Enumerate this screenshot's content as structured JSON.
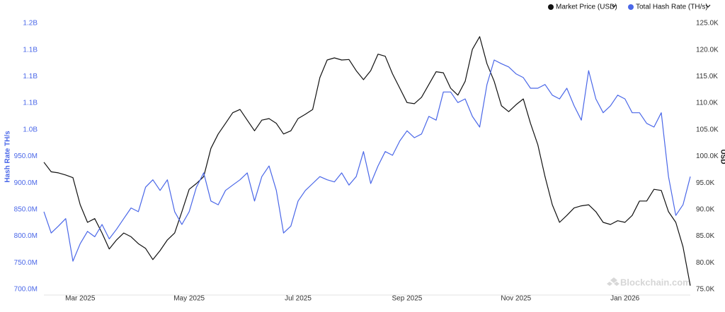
{
  "chart_data": {
    "type": "line",
    "y_label": "Hash Rate TH/s",
    "y2_label": "USD",
    "watermark": "Blockchain.com",
    "categories": [
      null,
      null,
      null,
      null,
      null,
      "Mar 2025",
      null,
      null,
      null,
      null,
      null,
      null,
      null,
      null,
      null,
      null,
      null,
      null,
      null,
      null,
      "May 2025",
      null,
      null,
      null,
      null,
      null,
      null,
      null,
      null,
      null,
      null,
      null,
      null,
      null,
      null,
      "Jul 2025",
      null,
      null,
      null,
      null,
      null,
      null,
      null,
      null,
      null,
      null,
      null,
      null,
      null,
      null,
      "Sep 2025",
      null,
      null,
      null,
      null,
      null,
      null,
      null,
      null,
      null,
      null,
      null,
      null,
      null,
      null,
      "Nov 2025",
      null,
      null,
      null,
      null,
      null,
      null,
      null,
      null,
      null,
      null,
      null,
      null,
      null,
      null,
      "Jan 2026",
      null,
      null,
      null,
      null,
      null,
      null,
      null,
      null,
      null
    ],
    "series": [
      {
        "name": "Market Price (USD)",
        "color": "#111111",
        "axis": "y2",
        "values": [
          98900,
          97100,
          96900,
          96500,
          96000,
          90900,
          87600,
          88300,
          85600,
          82600,
          84300,
          85600,
          84900,
          83600,
          82700,
          80600,
          82300,
          84300,
          85600,
          89600,
          93800,
          94900,
          96200,
          101500,
          104200,
          106200,
          108200,
          108800,
          106800,
          104800,
          106800,
          107100,
          106200,
          104200,
          104800,
          107100,
          107900,
          108800,
          114800,
          118100,
          118500,
          118100,
          118200,
          116100,
          114400,
          116100,
          119200,
          118800,
          115500,
          112800,
          110100,
          109900,
          111100,
          113500,
          115900,
          115700,
          112800,
          111500,
          114100,
          120100,
          122500,
          117400,
          114100,
          109500,
          108400,
          109700,
          110800,
          106200,
          102200,
          96200,
          90900,
          87600,
          88900,
          90300,
          90700,
          90900,
          89600,
          87600,
          87200,
          87900,
          87600,
          88900,
          91600,
          91600,
          93800,
          93600,
          89600,
          87600,
          83000,
          75700
        ]
      },
      {
        "name": "Total Hash Rate (TH/s)",
        "color": "#4a67e8",
        "axis": "y",
        "values": [
          846000000,
          806000000,
          819000000,
          833000000,
          753000000,
          786000000,
          809000000,
          799000000,
          822000000,
          795000000,
          813000000,
          833000000,
          853000000,
          846000000,
          892000000,
          906000000,
          886000000,
          906000000,
          846000000,
          822000000,
          846000000,
          892000000,
          919000000,
          866000000,
          859000000,
          886000000,
          896000000,
          906000000,
          919000000,
          866000000,
          912000000,
          932000000,
          886000000,
          806000000,
          819000000,
          866000000,
          886000000,
          899000000,
          912000000,
          906000000,
          902000000,
          919000000,
          896000000,
          912000000,
          959000000,
          899000000,
          932000000,
          959000000,
          952000000,
          979000000,
          998000000,
          985000000,
          992000000,
          1025000000,
          1018000000,
          1071000000,
          1071000000,
          1051000000,
          1058000000,
          1025000000,
          1005000000,
          1085000000,
          1131000000,
          1124000000,
          1118000000,
          1105000000,
          1098000000,
          1078000000,
          1078000000,
          1085000000,
          1065000000,
          1058000000,
          1078000000,
          1045000000,
          1018000000,
          1111000000,
          1058000000,
          1032000000,
          1045000000,
          1065000000,
          1058000000,
          1032000000,
          1032000000,
          1012000000,
          1005000000,
          1032000000,
          912000000,
          839000000,
          859000000,
          912000000
        ]
      }
    ],
    "ylim": [
      700000000,
      1200000000
    ],
    "yticks": [
      {
        "value": 700000000,
        "label": "700.0M"
      },
      {
        "value": 750000000,
        "label": "750.0M"
      },
      {
        "value": 800000000,
        "label": "800.0M"
      },
      {
        "value": 850000000,
        "label": "850.0M"
      },
      {
        "value": 900000000,
        "label": "900.0M"
      },
      {
        "value": 950000000,
        "label": "950.0M"
      },
      {
        "value": 1000000000,
        "label": "1.0B"
      },
      {
        "value": 1050000000,
        "label": "1.1B"
      },
      {
        "value": 1100000000,
        "label": "1.1B"
      },
      {
        "value": 1150000000,
        "label": "1.1B"
      },
      {
        "value": 1200000000,
        "label": "1.2B"
      }
    ],
    "y2lim": [
      75000,
      125000
    ],
    "y2ticks": [
      {
        "value": 75000,
        "label": "75.0K"
      },
      {
        "value": 80000,
        "label": "80.0K"
      },
      {
        "value": 85000,
        "label": "85.0K"
      },
      {
        "value": 90000,
        "label": "90.0K"
      },
      {
        "value": 95000,
        "label": "95.0K"
      },
      {
        "value": 100000,
        "label": "100.0K"
      },
      {
        "value": 105000,
        "label": "105.0K"
      },
      {
        "value": 110000,
        "label": "110.0K"
      },
      {
        "value": 115000,
        "label": "115.0K"
      },
      {
        "value": 120000,
        "label": "120.0K"
      },
      {
        "value": 125000,
        "label": "125.0K"
      }
    ],
    "grid": false,
    "legend": "top-right"
  }
}
